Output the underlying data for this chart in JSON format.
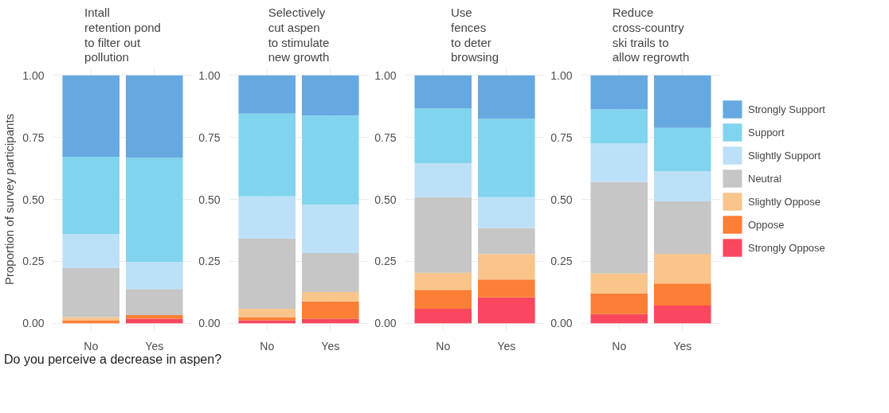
{
  "chart_data": [
    {
      "type": "bar",
      "stacked": true,
      "title": "Intall\nretention pond\nto filter out\npollution",
      "ylabel": "Proportion of survey participants",
      "xlabel": "Do you perceive a decrease in aspen?",
      "categories": [
        "No",
        "Yes"
      ],
      "ylim": [
        -0.03,
        1.03
      ],
      "yticks": [
        {
          "value": 0,
          "label": "0.00"
        },
        {
          "value": 0.25,
          "label": "0.25"
        },
        {
          "value": 0.5,
          "label": "0.50"
        },
        {
          "value": 0.75,
          "label": "0.75"
        },
        {
          "value": 1,
          "label": "1.00"
        }
      ],
      "grid": true,
      "legend": false,
      "series": [
        {
          "color": "#f8475e",
          "values": [
            0,
            0.018
          ]
        },
        {
          "color": "#fd7e35",
          "values": [
            0.012,
            0.015
          ]
        },
        {
          "color": "#f9c58b",
          "values": [
            0.013,
            0
          ]
        },
        {
          "color": "#c6c6c6",
          "values": [
            0.197,
            0.105
          ]
        },
        {
          "color": "#bce0f8",
          "values": [
            0.138,
            0.11
          ]
        },
        {
          "color": "#81d4ed",
          "values": [
            0.312,
            0.42
          ]
        },
        {
          "color": "#66a9e1",
          "values": [
            0.328,
            0.332
          ]
        }
      ]
    },
    {
      "type": "bar",
      "stacked": true,
      "title": "Selectively\ncut aspen\nto stimulate\nnew growth",
      "categories": [
        "No",
        "Yes"
      ],
      "ylim": [
        -0.03,
        1.03
      ],
      "yticks": [
        {
          "value": 0,
          "label": "0.00"
        },
        {
          "value": 0.25,
          "label": "0.25"
        },
        {
          "value": 0.5,
          "label": "0.50"
        },
        {
          "value": 0.75,
          "label": "0.75"
        },
        {
          "value": 1,
          "label": "1.00"
        }
      ],
      "grid": true,
      "legend": false,
      "series": [
        {
          "color": "#f8475e",
          "values": [
            0.012,
            0.017
          ]
        },
        {
          "color": "#fd7e35",
          "values": [
            0.013,
            0.071
          ]
        },
        {
          "color": "#f9c58b",
          "values": [
            0.033,
            0.038
          ]
        },
        {
          "color": "#c6c6c6",
          "values": [
            0.283,
            0.157
          ]
        },
        {
          "color": "#bce0f8",
          "values": [
            0.171,
            0.196
          ]
        },
        {
          "color": "#81d4ed",
          "values": [
            0.334,
            0.359
          ]
        },
        {
          "color": "#66a9e1",
          "values": [
            0.154,
            0.162
          ]
        }
      ]
    },
    {
      "type": "bar",
      "stacked": true,
      "title": "Use\nfences\nto deter\nbrowsing",
      "categories": [
        "No",
        "Yes"
      ],
      "ylim": [
        -0.03,
        1.03
      ],
      "yticks": [
        {
          "value": 0,
          "label": "0.00"
        },
        {
          "value": 0.25,
          "label": "0.25"
        },
        {
          "value": 0.5,
          "label": "0.50"
        },
        {
          "value": 0.75,
          "label": "0.75"
        },
        {
          "value": 1,
          "label": "1.00"
        }
      ],
      "grid": true,
      "legend": false,
      "series": [
        {
          "color": "#f8475e",
          "values": [
            0.058,
            0.104
          ]
        },
        {
          "color": "#fd7e35",
          "values": [
            0.077,
            0.072
          ]
        },
        {
          "color": "#f9c58b",
          "values": [
            0.069,
            0.103
          ]
        },
        {
          "color": "#c6c6c6",
          "values": [
            0.305,
            0.105
          ]
        },
        {
          "color": "#bce0f8",
          "values": [
            0.137,
            0.125
          ]
        },
        {
          "color": "#81d4ed",
          "values": [
            0.221,
            0.316
          ]
        },
        {
          "color": "#66a9e1",
          "values": [
            0.133,
            0.175
          ]
        }
      ]
    },
    {
      "type": "bar",
      "stacked": true,
      "title": "Reduce\ncross-country\nski trails to\nallow regrowth",
      "categories": [
        "No",
        "Yes"
      ],
      "ylim": [
        -0.03,
        1.03
      ],
      "yticks": [
        {
          "value": 0,
          "label": "0.00"
        },
        {
          "value": 0.25,
          "label": "0.25"
        },
        {
          "value": 0.5,
          "label": "0.50"
        },
        {
          "value": 0.75,
          "label": "0.75"
        },
        {
          "value": 1,
          "label": "1.00"
        }
      ],
      "grid": true,
      "legend": "right",
      "series": [
        {
          "name": "Strongly Oppose",
          "color": "#f8475e",
          "values": [
            0.037,
            0.071
          ]
        },
        {
          "name": "Oppose",
          "color": "#fd7e35",
          "values": [
            0.084,
            0.089
          ]
        },
        {
          "name": "Slightly Oppose",
          "color": "#f9c58b",
          "values": [
            0.08,
            0.12
          ]
        },
        {
          "name": "Neutral",
          "color": "#c6c6c6",
          "values": [
            0.37,
            0.212
          ]
        },
        {
          "name": "Slightly Support",
          "color": "#bce0f8",
          "values": [
            0.155,
            0.122
          ]
        },
        {
          "name": "Support",
          "color": "#81d4ed",
          "values": [
            0.137,
            0.174
          ]
        },
        {
          "name": "Strongly Support",
          "color": "#66a9e1",
          "values": [
            0.137,
            0.212
          ]
        }
      ]
    }
  ]
}
